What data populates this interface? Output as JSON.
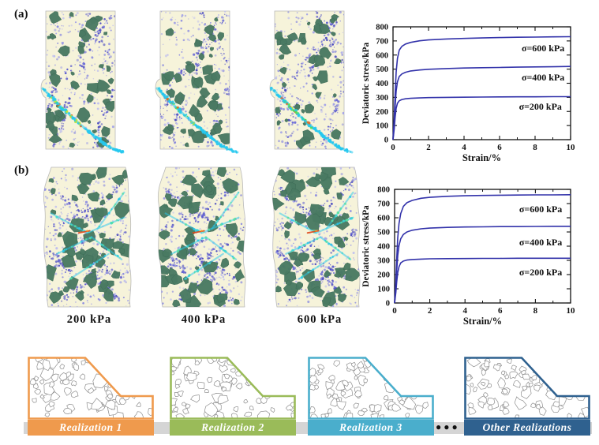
{
  "panels": {
    "a_label": "(a)",
    "b_label": "(b)"
  },
  "captions": [
    "200 kPa",
    "400 kPa",
    "600 kPa"
  ],
  "chart_data": [
    {
      "type": "line",
      "panel": "a",
      "xlabel": "Strain/%",
      "ylabel": "Deviatoric stress/kPa",
      "xlim": [
        0,
        10
      ],
      "ylim": [
        0,
        800
      ],
      "xticks": [
        0,
        2,
        4,
        6,
        8,
        10
      ],
      "xminor": [
        1,
        3,
        5,
        7,
        9
      ],
      "yticks": [
        0,
        100,
        200,
        300,
        400,
        500,
        600,
        700,
        800
      ],
      "grid": false,
      "line_color": "#3232aa",
      "series": [
        {
          "name": "σ=600 kPa",
          "label_pos": {
            "x": 8.45,
            "y": 650
          },
          "points": [
            [
              0,
              0
            ],
            [
              0.07,
              160
            ],
            [
              0.12,
              330
            ],
            [
              0.18,
              480
            ],
            [
              0.25,
              575
            ],
            [
              0.35,
              635
            ],
            [
              0.5,
              662
            ],
            [
              0.7,
              678
            ],
            [
              1,
              690
            ],
            [
              1.5,
              701
            ],
            [
              2,
              707
            ],
            [
              3,
              714
            ],
            [
              4,
              718
            ],
            [
              5,
              721
            ],
            [
              6,
              724
            ],
            [
              7,
              726
            ],
            [
              8,
              727
            ],
            [
              9,
              729
            ],
            [
              10,
              730
            ]
          ]
        },
        {
          "name": "σ=400 kPa",
          "label_pos": {
            "x": 8.45,
            "y": 443
          },
          "points": [
            [
              0,
              0
            ],
            [
              0.07,
              120
            ],
            [
              0.12,
              240
            ],
            [
              0.18,
              345
            ],
            [
              0.25,
              410
            ],
            [
              0.35,
              448
            ],
            [
              0.5,
              466
            ],
            [
              0.7,
              478
            ],
            [
              1,
              487
            ],
            [
              1.5,
              494
            ],
            [
              2,
              499
            ],
            [
              3,
              504
            ],
            [
              4,
              508
            ],
            [
              5,
              510
            ],
            [
              6,
              512
            ],
            [
              7,
              514
            ],
            [
              8,
              516
            ],
            [
              9,
              517
            ],
            [
              10,
              519
            ]
          ]
        },
        {
          "name": "σ=200 kPa",
          "label_pos": {
            "x": 8.3,
            "y": 236
          },
          "points": [
            [
              0,
              0
            ],
            [
              0.07,
              80
            ],
            [
              0.12,
              160
            ],
            [
              0.18,
              222
            ],
            [
              0.25,
              258
            ],
            [
              0.35,
              276
            ],
            [
              0.5,
              285
            ],
            [
              0.7,
              290
            ],
            [
              1,
              293
            ],
            [
              1.5,
              296
            ],
            [
              2,
              298
            ],
            [
              3,
              300
            ],
            [
              4,
              301
            ],
            [
              5,
              302
            ],
            [
              6,
              303
            ],
            [
              7,
              304
            ],
            [
              8,
              304
            ],
            [
              9,
              305
            ],
            [
              10,
              305
            ]
          ]
        }
      ]
    },
    {
      "type": "line",
      "panel": "b",
      "xlabel": "Strain/%",
      "ylabel": "Deviatoric stress/kPa",
      "xlim": [
        0,
        10
      ],
      "ylim": [
        0,
        800
      ],
      "xticks": [
        0,
        2,
        4,
        6,
        8,
        10
      ],
      "xminor": [
        1,
        3,
        5,
        7,
        9
      ],
      "yticks": [
        0,
        100,
        200,
        300,
        400,
        500,
        600,
        700,
        800
      ],
      "grid": false,
      "line_color": "#3232aa",
      "series": [
        {
          "name": "σ=600 kPa",
          "label_pos": {
            "x": 8.3,
            "y": 660
          },
          "points": [
            [
              0,
              0
            ],
            [
              0.07,
              150
            ],
            [
              0.12,
              310
            ],
            [
              0.18,
              460
            ],
            [
              0.25,
              560
            ],
            [
              0.35,
              630
            ],
            [
              0.5,
              680
            ],
            [
              0.7,
              706
            ],
            [
              1,
              722
            ],
            [
              1.5,
              737
            ],
            [
              2,
              744
            ],
            [
              3,
              751
            ],
            [
              4,
              755
            ],
            [
              5,
              757
            ],
            [
              6,
              759
            ],
            [
              7,
              760
            ],
            [
              8,
              761
            ],
            [
              9,
              761
            ],
            [
              10,
              762
            ]
          ]
        },
        {
          "name": "σ=400 kPa",
          "label_pos": {
            "x": 8.3,
            "y": 428
          },
          "points": [
            [
              0,
              0
            ],
            [
              0.07,
              115
            ],
            [
              0.12,
              230
            ],
            [
              0.18,
              335
            ],
            [
              0.25,
              405
            ],
            [
              0.35,
              452
            ],
            [
              0.5,
              482
            ],
            [
              0.7,
              500
            ],
            [
              1,
              512
            ],
            [
              1.5,
              522
            ],
            [
              2,
              527
            ],
            [
              3,
              532
            ],
            [
              4,
              535
            ],
            [
              5,
              536
            ],
            [
              6,
              538
            ],
            [
              7,
              538
            ],
            [
              8,
              539
            ],
            [
              9,
              540
            ],
            [
              10,
              540
            ]
          ]
        },
        {
          "name": "σ=200 kPa",
          "label_pos": {
            "x": 8.3,
            "y": 218
          },
          "points": [
            [
              0,
              0
            ],
            [
              0.07,
              75
            ],
            [
              0.12,
              150
            ],
            [
              0.18,
              215
            ],
            [
              0.25,
              255
            ],
            [
              0.35,
              282
            ],
            [
              0.5,
              295
            ],
            [
              0.7,
              302
            ],
            [
              1,
              306
            ],
            [
              1.5,
              309
            ],
            [
              2,
              311
            ],
            [
              3,
              312
            ],
            [
              4,
              313
            ],
            [
              5,
              314
            ],
            [
              6,
              314
            ],
            [
              7,
              315
            ],
            [
              8,
              315
            ],
            [
              9,
              315
            ],
            [
              10,
              315
            ]
          ]
        }
      ]
    }
  ],
  "realizations": {
    "strip_color": "#d5d5d5",
    "ellipsis": "●●●",
    "items": [
      {
        "label": "Realization 1",
        "color": "#EF9A4D"
      },
      {
        "label": "Realization 2",
        "color": "#9ABB59"
      },
      {
        "label": "Realization 3",
        "color": "#4AAECC"
      },
      {
        "label": "Other Realizations",
        "color": "#2F618F"
      }
    ]
  },
  "specimen_colors": {
    "background": "#f6f3da",
    "edge": "#b9b9b9",
    "particle_green": "#4a7a63",
    "particle_green_edge": "#3c6a55",
    "matrix_light": [
      "#bcbcf0",
      "#a0a0e8",
      "#8989e0"
    ],
    "matrix_dark": [
      "#6b6bd8",
      "#5555cc",
      "#4444c0"
    ],
    "band_cyan": "#26c8ee",
    "band_accents": [
      "#35d89a",
      "#52e052",
      "#c0e432",
      "#e06a28",
      "#28c8e8"
    ],
    "red_streak": "#e04818"
  }
}
